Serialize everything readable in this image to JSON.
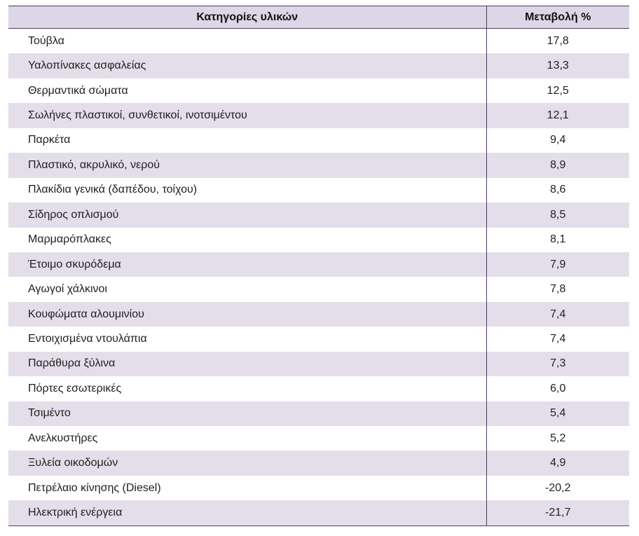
{
  "table": {
    "headers": {
      "category": "Κατηγορίες υλικών",
      "change": "Μεταβολή %"
    },
    "rows": [
      {
        "category": "Τούβλα",
        "change": "17,8"
      },
      {
        "category": "Υαλοπίνακες ασφαλείας",
        "change": "13,3"
      },
      {
        "category": "Θερμαντικά σώματα",
        "change": "12,5"
      },
      {
        "category": "Σωλήνες πλαστικοί, συνθετικοί, ινοτσιμέντου",
        "change": "12,1"
      },
      {
        "category": "Παρκέτα",
        "change": "9,4"
      },
      {
        "category": "Πλαστικό, ακρυλικό, νερού",
        "change": "8,9"
      },
      {
        "category": "Πλακίδια γενικά (δαπέδου, τοίχου)",
        "change": "8,6"
      },
      {
        "category": "Σίδηρος οπλισμού",
        "change": "8,5"
      },
      {
        "category": "Μαρμαρόπλακες",
        "change": "8,1"
      },
      {
        "category": "Έτοιμο σκυρόδεμα",
        "change": "7,9"
      },
      {
        "category": "Αγωγοί χάλκινοι",
        "change": "7,8"
      },
      {
        "category": "Κουφώματα αλουμινίου",
        "change": "7,4"
      },
      {
        "category": "Εντοιχισμένα ντουλάπια",
        "change": "7,4"
      },
      {
        "category": "Παράθυρα ξύλινα",
        "change": "7,3"
      },
      {
        "category": "Πόρτες εσωτερικές",
        "change": "6,0"
      },
      {
        "category": "Τσιμέντο",
        "change": "5,4"
      },
      {
        "category": "Ανελκυστήρες",
        "change": "5,2"
      },
      {
        "category": "Ξυλεία οικοδομών",
        "change": "4,9"
      },
      {
        "category": "Πετρέλαιο κίνησης (Diesel)",
        "change": "-20,2"
      },
      {
        "category": "Ηλεκτρική ενέργεια",
        "change": "-21,7"
      }
    ]
  }
}
